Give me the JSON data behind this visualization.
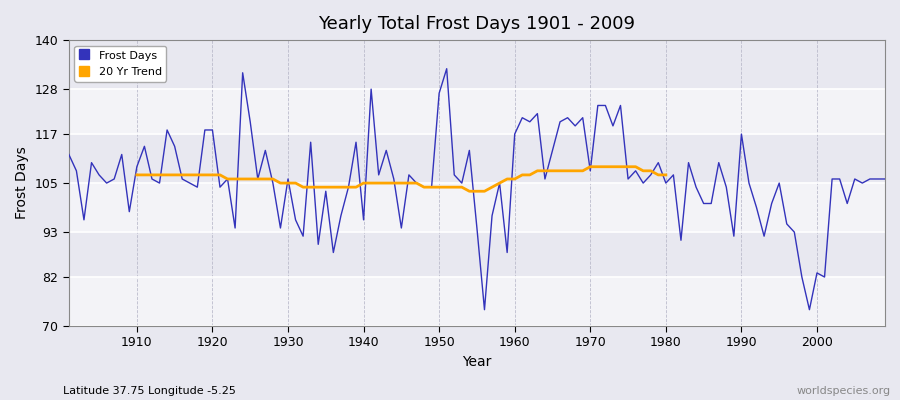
{
  "title": "Yearly Total Frost Days 1901 - 2009",
  "xlabel": "Year",
  "ylabel": "Frost Days",
  "subtitle": "Latitude 37.75 Longitude -5.25",
  "watermark": "worldspecies.org",
  "fig_bg_color": "#e8e8f0",
  "plot_bg_color": "#e8e8f0",
  "line_color": "#3333bb",
  "trend_color": "#ffa500",
  "ylim": [
    70,
    140
  ],
  "yticks": [
    70,
    82,
    93,
    105,
    117,
    128,
    140
  ],
  "xlim": [
    1901,
    2009
  ],
  "xticks": [
    1910,
    1920,
    1930,
    1940,
    1950,
    1960,
    1970,
    1980,
    1990,
    2000
  ],
  "years": [
    1901,
    1902,
    1903,
    1904,
    1905,
    1906,
    1907,
    1908,
    1909,
    1910,
    1911,
    1912,
    1913,
    1914,
    1915,
    1916,
    1917,
    1918,
    1919,
    1920,
    1921,
    1922,
    1923,
    1924,
    1925,
    1926,
    1927,
    1928,
    1929,
    1930,
    1931,
    1932,
    1933,
    1934,
    1935,
    1936,
    1937,
    1938,
    1939,
    1940,
    1941,
    1942,
    1943,
    1944,
    1945,
    1946,
    1947,
    1948,
    1949,
    1950,
    1951,
    1952,
    1953,
    1954,
    1955,
    1956,
    1957,
    1958,
    1959,
    1960,
    1961,
    1962,
    1963,
    1964,
    1965,
    1966,
    1967,
    1968,
    1969,
    1970,
    1971,
    1972,
    1973,
    1974,
    1975,
    1976,
    1977,
    1978,
    1979,
    1980,
    1981,
    1982,
    1983,
    1984,
    1985,
    1986,
    1987,
    1988,
    1989,
    1990,
    1991,
    1992,
    1993,
    1994,
    1995,
    1996,
    1997,
    1998,
    1999,
    2000,
    2001,
    2002,
    2003,
    2004,
    2005,
    2006,
    2007,
    2008,
    2009
  ],
  "frost_days": [
    112,
    108,
    96,
    110,
    107,
    105,
    106,
    112,
    98,
    109,
    114,
    106,
    105,
    118,
    114,
    106,
    105,
    104,
    118,
    118,
    104,
    106,
    94,
    132,
    120,
    106,
    113,
    105,
    94,
    106,
    96,
    92,
    115,
    90,
    103,
    88,
    97,
    104,
    115,
    96,
    128,
    107,
    113,
    106,
    94,
    107,
    105,
    104,
    104,
    127,
    133,
    107,
    105,
    113,
    94,
    74,
    97,
    105,
    88,
    117,
    121,
    120,
    122,
    106,
    113,
    120,
    121,
    119,
    121,
    108,
    124,
    124,
    119,
    124,
    106,
    108,
    105,
    107,
    110,
    105,
    107,
    91,
    110,
    104,
    100,
    100,
    110,
    104,
    92,
    117,
    105,
    99,
    92,
    100,
    105,
    95,
    93,
    82,
    74,
    83,
    82,
    106,
    106,
    100,
    106,
    105,
    106,
    106,
    106
  ],
  "trend_years": [
    1910,
    1911,
    1912,
    1913,
    1914,
    1915,
    1916,
    1917,
    1918,
    1919,
    1920,
    1921,
    1922,
    1923,
    1924,
    1925,
    1926,
    1927,
    1928,
    1929,
    1930,
    1931,
    1932,
    1933,
    1934,
    1935,
    1936,
    1937,
    1938,
    1939,
    1940,
    1941,
    1942,
    1943,
    1944,
    1945,
    1946,
    1947,
    1948,
    1949,
    1950,
    1951,
    1952,
    1953,
    1954,
    1955,
    1956,
    1957,
    1958,
    1959,
    1960,
    1961,
    1962,
    1963,
    1964,
    1965,
    1966,
    1967,
    1968,
    1969,
    1970,
    1971,
    1972,
    1973,
    1974,
    1975,
    1976,
    1977,
    1978,
    1979,
    1980
  ],
  "trend_values": [
    107,
    107,
    107,
    107,
    107,
    107,
    107,
    107,
    107,
    107,
    107,
    107,
    106,
    106,
    106,
    106,
    106,
    106,
    106,
    105,
    105,
    105,
    104,
    104,
    104,
    104,
    104,
    104,
    104,
    104,
    105,
    105,
    105,
    105,
    105,
    105,
    105,
    105,
    104,
    104,
    104,
    104,
    104,
    104,
    103,
    103,
    103,
    104,
    105,
    106,
    106,
    107,
    107,
    108,
    108,
    108,
    108,
    108,
    108,
    108,
    109,
    109,
    109,
    109,
    109,
    109,
    109,
    108,
    108,
    107,
    107
  ]
}
